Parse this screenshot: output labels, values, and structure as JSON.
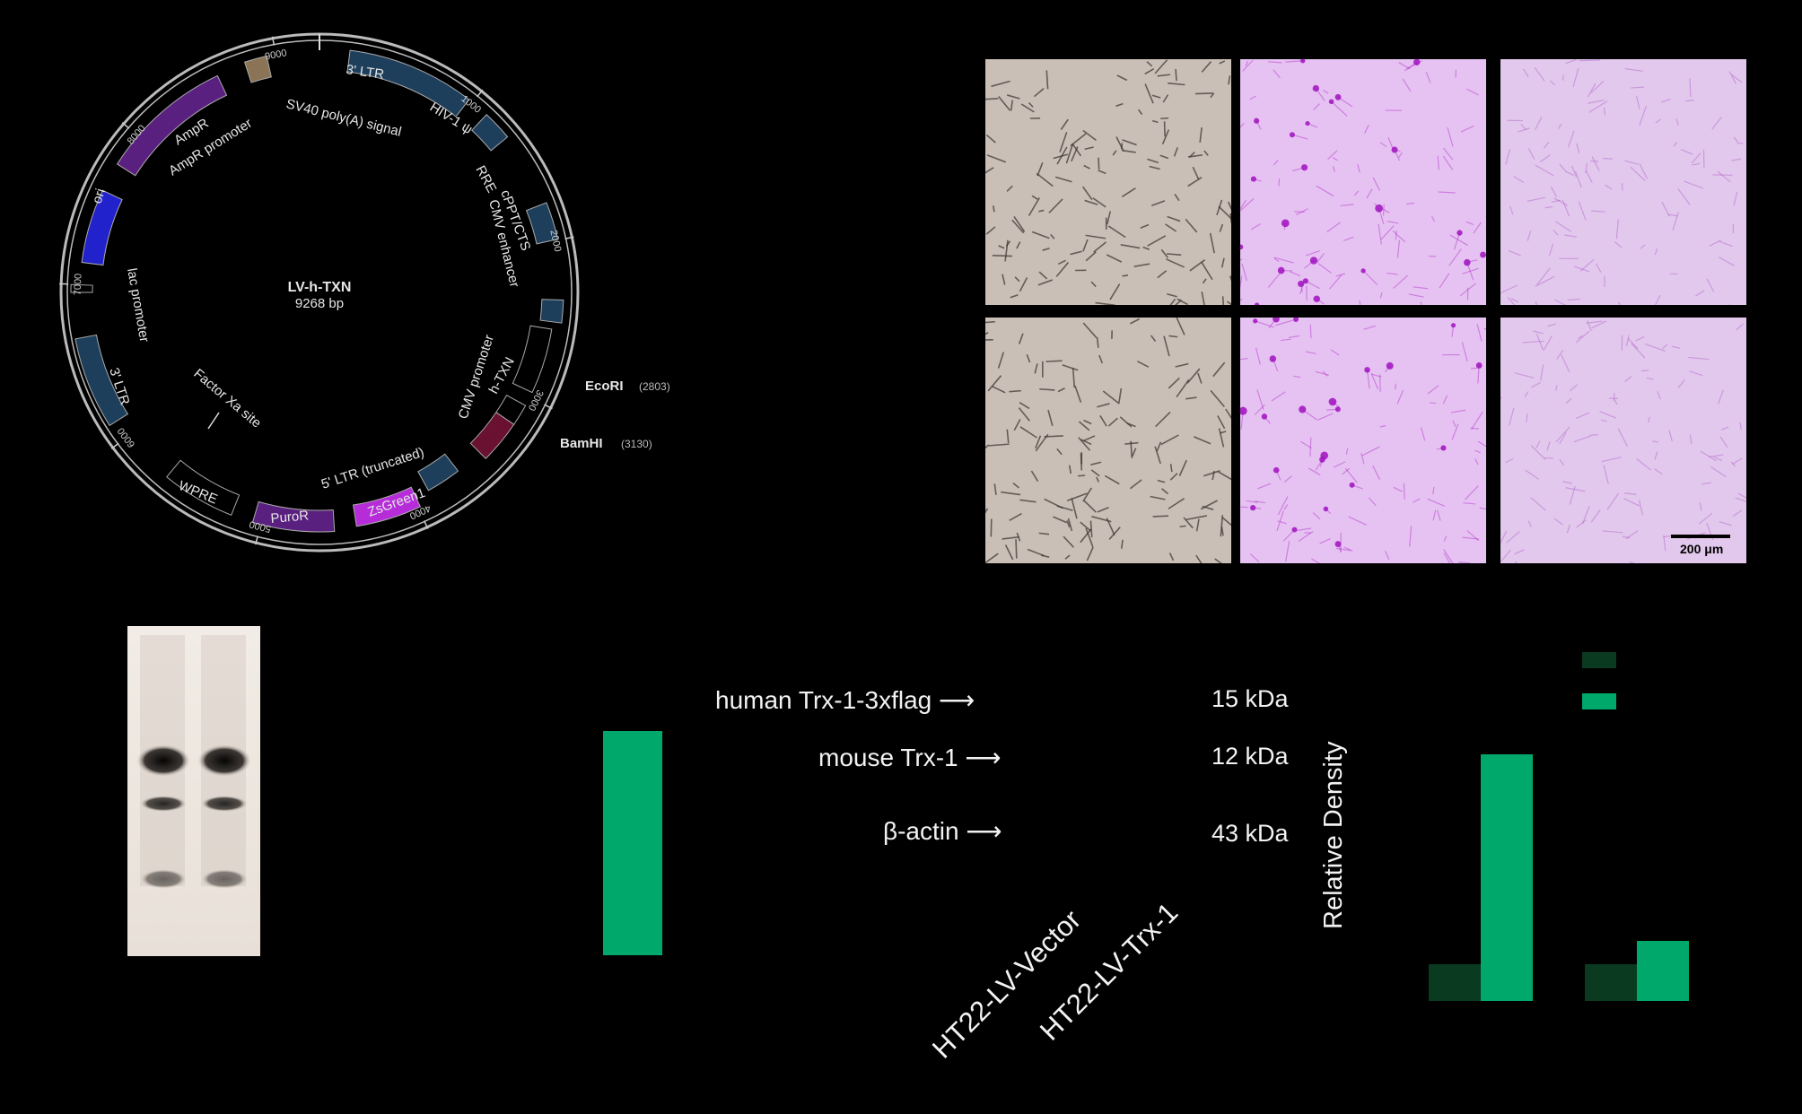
{
  "plasmid": {
    "name": "LV-h-TXN",
    "size": "9268 bp",
    "ticks": [
      "1000",
      "2000",
      "3000",
      "4000",
      "5000",
      "6000",
      "7000",
      "8000",
      "9000"
    ],
    "features": [
      {
        "label": "3' LTR",
        "color": "#1e3f5c"
      },
      {
        "label": "HIV-1 ψ",
        "color": "#1e3f5c"
      },
      {
        "label": "RRE",
        "color": "#1e3f5c"
      },
      {
        "label": "cPPT/CTS",
        "color": "#1e3f5c"
      },
      {
        "label": "CMV enhancer",
        "color": "#000000"
      },
      {
        "label": "CMV promoter",
        "color": "#000000"
      },
      {
        "label": "h-TXN",
        "color": "#6a1030"
      },
      {
        "label": "5' LTR (truncated)",
        "color": "#1e3f5c"
      },
      {
        "label": "ZsGreen1",
        "color": "#b52cd8"
      },
      {
        "label": "PuroR",
        "color": "#5a2080"
      },
      {
        "label": "WPRE",
        "color": "#000000"
      },
      {
        "label": "Factor Xa site",
        "color": "#000000"
      },
      {
        "label": "3' LTR",
        "color": "#1e3f5c"
      },
      {
        "label": "lac promoter",
        "color": "#000000"
      },
      {
        "label": "ori",
        "color": "#2222cc"
      },
      {
        "label": "AmpR",
        "color": "#5a2080"
      },
      {
        "label": "AmpR promoter",
        "color": "#000000"
      },
      {
        "label": "SV40 poly(A) signal",
        "color": "#8b7355"
      }
    ],
    "sites": [
      {
        "name": "EcoRI",
        "pos": "(2803)"
      },
      {
        "name": "BamHI",
        "pos": "(3130)"
      }
    ]
  },
  "micrographs": {
    "scale_bar": "200 μm",
    "panels": [
      {
        "stain": "brightfield"
      },
      {
        "stain": "violet"
      },
      {
        "stain": "violet-light"
      },
      {
        "stain": "brightfield"
      },
      {
        "stain": "violet"
      },
      {
        "stain": "violet-light"
      }
    ]
  },
  "western": {
    "labels": [
      {
        "protein": "human Trx-1-3xflag",
        "kda": "15 kDa"
      },
      {
        "protein": "mouse Trx-1",
        "kda": "12 kDa"
      },
      {
        "protein": "β-actin",
        "kda": "43 kDa"
      }
    ],
    "samples": [
      "HT22-LV-Vector",
      "HT22-LV-Trx-1"
    ]
  },
  "chart_data": {
    "type": "bar",
    "ylabel": "Relative Density",
    "groups": 2,
    "series": [
      {
        "color": "#0a3a20",
        "values": [
          0.15,
          0.15
        ]
      },
      {
        "color": "#00a86b",
        "values": [
          1.0,
          0.245
        ]
      }
    ],
    "ylim": [
      0,
      1.0
    ]
  },
  "colors": {
    "accent": "#00a86b",
    "dark": "#0a3a20"
  }
}
